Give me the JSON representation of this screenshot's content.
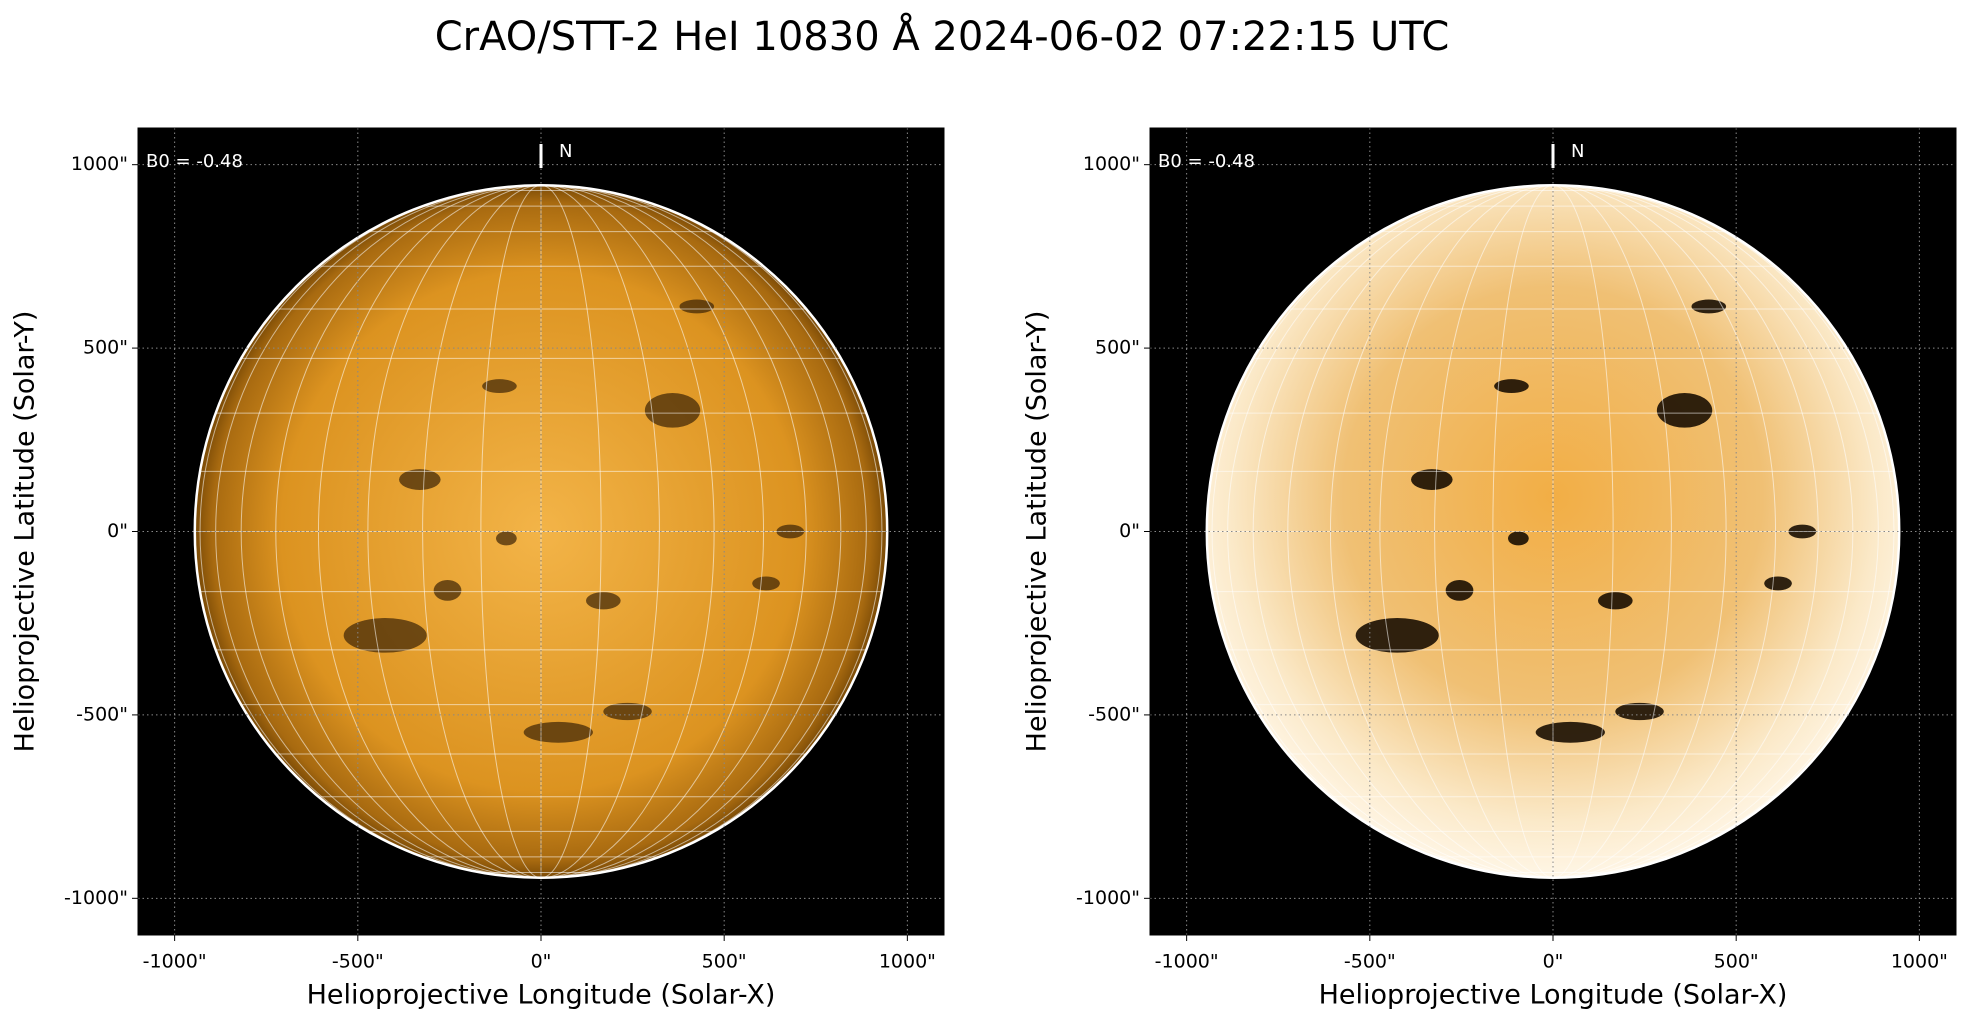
{
  "title": "CrAO/STT-2 HeI 10830 Å 2024-06-02 07:22:15 UTC",
  "chart_data": [
    {
      "type": "image",
      "xlabel": "Helioprojective Longitude (Solar-X)",
      "ylabel": "Helioprojective Latitude (Solar-Y)",
      "xlim": [
        -1100,
        1100
      ],
      "ylim": [
        -1100,
        1100
      ],
      "xticks": [
        {
          "value": -1000,
          "label": "-1000\""
        },
        {
          "value": -500,
          "label": "-500\""
        },
        {
          "value": 0,
          "label": "0\""
        },
        {
          "value": 500,
          "label": "500\""
        },
        {
          "value": 1000,
          "label": "1000\""
        }
      ],
      "yticks": [
        {
          "value": -1000,
          "label": "-1000\""
        },
        {
          "value": -500,
          "label": "-500\""
        },
        {
          "value": 0,
          "label": "0\""
        },
        {
          "value": 500,
          "label": "500\""
        },
        {
          "value": 1000,
          "label": "1000\""
        }
      ],
      "disk_radius": 945,
      "annotation": "B0 = -0.48",
      "north_label": "N",
      "grid": true
    },
    {
      "type": "image",
      "xlabel": "Helioprojective Longitude (Solar-X)",
      "ylabel": "Helioprojective Latitude (Solar-Y)",
      "xlim": [
        -1100,
        1100
      ],
      "ylim": [
        -1100,
        1100
      ],
      "xticks": [
        {
          "value": -1000,
          "label": "-1000\""
        },
        {
          "value": -500,
          "label": "-500\""
        },
        {
          "value": 0,
          "label": "0\""
        },
        {
          "value": 500,
          "label": "500\""
        },
        {
          "value": 1000,
          "label": "1000\""
        }
      ],
      "yticks": [
        {
          "value": -1000,
          "label": "-1000\""
        },
        {
          "value": -500,
          "label": "-500\""
        },
        {
          "value": 0,
          "label": "0\""
        },
        {
          "value": 500,
          "label": "500\""
        },
        {
          "value": 1000,
          "label": "1000\""
        }
      ],
      "disk_radius": 945,
      "annotation": "B0 = -0.48",
      "north_label": "N",
      "grid": true
    }
  ]
}
